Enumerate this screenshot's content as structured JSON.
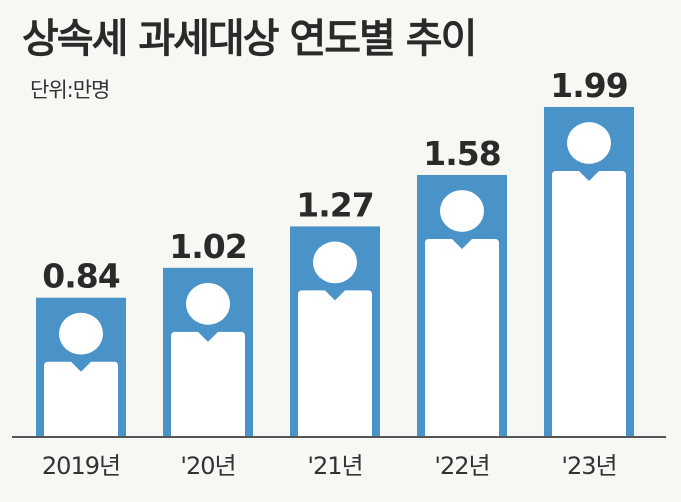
{
  "chart_data": {
    "type": "bar",
    "title": "상속세 과세대상 연도별 추이",
    "unit": "단위:만명",
    "categories": [
      "2019년",
      "'20년",
      "'21년",
      "'22년",
      "'23년"
    ],
    "values": [
      0.84,
      1.02,
      1.27,
      1.58,
      1.99
    ],
    "value_labels": [
      "0.84",
      "1.02",
      "1.27",
      "1.58",
      "1.99"
    ],
    "bar_color": "#4a93c8",
    "figure_color": "#ffffff",
    "baseline_color": "#555555",
    "grid": false,
    "legend": "none"
  }
}
